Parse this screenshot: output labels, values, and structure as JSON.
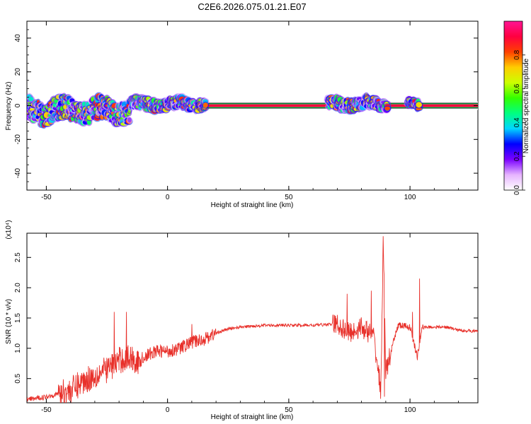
{
  "title": "C2E6.2026.075.01.21.E07",
  "colorbar_label": "Normalized spectral amplitude",
  "chart_data": [
    {
      "type": "heatmap",
      "xlabel": "Height of straight line (km)",
      "ylabel": "Frequency (Hz)",
      "xlim": [
        -58,
        128
      ],
      "ylim": [
        -50,
        50
      ],
      "x_ticks": [
        -50,
        0,
        50,
        100
      ],
      "y_ticks": [
        -40,
        -20,
        0,
        20,
        40
      ],
      "colorbar": {
        "label": "Normalized spectral amplitude",
        "range": [
          0,
          1
        ],
        "ticks": [
          0.0,
          0.2,
          0.4,
          0.6,
          0.8
        ],
        "colors": [
          "#ffffff",
          "#e6b3ff",
          "#7a00ff",
          "#0000ff",
          "#00d5ff",
          "#00ff80",
          "#33ff00",
          "#ccff00",
          "#ffcc00",
          "#ff4000",
          "#ff0040",
          "#ff1493"
        ]
      },
      "steady_band": {
        "x_start": 15,
        "x_end": 128,
        "frequency": 0
      },
      "ridge_segments": [
        {
          "x_start": -58,
          "x_end": -15,
          "center_freq": -3,
          "spread": 8
        },
        {
          "x_start": -15,
          "x_end": 16,
          "center_freq": 1,
          "spread": 4
        },
        {
          "x_start": 66,
          "x_end": 91,
          "center_freq": 1,
          "spread": 4
        },
        {
          "x_start": 99,
          "x_end": 104,
          "center_freq": 1,
          "spread": 3
        }
      ]
    },
    {
      "type": "line",
      "xlabel": "Height of straight line (km)",
      "ylabel": "SNR (10 * v/v)",
      "yscale_label": "(x10⁴)",
      "xlim": [
        -58,
        128
      ],
      "ylim": [
        0.1,
        2.9
      ],
      "x_ticks": [
        -50,
        0,
        50,
        100
      ],
      "y_ticks": [
        0.5,
        1.0,
        1.5,
        2.0,
        2.5
      ],
      "series": [
        {
          "color": "#e8302a",
          "x": [
            -58,
            -50,
            -45,
            -40,
            -35,
            -30,
            -25,
            -20,
            -15,
            -12,
            -10,
            -5,
            0,
            5,
            10,
            15,
            20,
            25,
            30,
            40,
            50,
            60,
            70,
            75,
            80,
            85,
            88,
            89,
            90,
            95,
            100,
            103,
            105,
            110,
            115,
            120,
            128
          ],
          "y": [
            0.15,
            0.2,
            0.25,
            0.3,
            0.45,
            0.55,
            0.65,
            0.8,
            0.85,
            0.75,
            0.85,
            0.95,
            0.95,
            1.0,
            1.1,
            1.15,
            1.25,
            1.32,
            1.35,
            1.38,
            1.38,
            1.38,
            1.4,
            1.25,
            1.35,
            1.2,
            0.3,
            2.85,
            0.6,
            1.38,
            1.35,
            0.85,
            1.35,
            1.35,
            1.35,
            1.3,
            1.28
          ],
          "spikes": [
            {
              "x": -22,
              "y": 1.6
            },
            {
              "x": -17,
              "y": 1.6
            },
            {
              "x": 10,
              "y": 1.4
            },
            {
              "x": 74,
              "y": 1.9
            },
            {
              "x": 84,
              "y": 1.95
            },
            {
              "x": 89,
              "y": 2.85
            },
            {
              "x": 89.5,
              "y": 0.2
            },
            {
              "x": 101,
              "y": 1.6
            },
            {
              "x": 104,
              "y": 2.15
            }
          ]
        }
      ]
    }
  ]
}
